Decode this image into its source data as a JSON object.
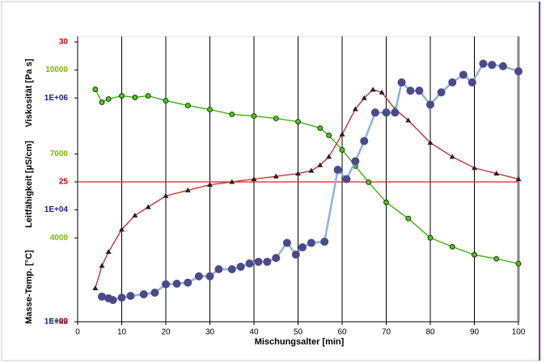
{
  "chart_data": {
    "type": "line",
    "xlabel": "Mischungsalter [min]",
    "ylabel": "Masse-Temp. [°C]",
    "y2label": "Leitfähigkeit [µS/cm]",
    "y3label": "Viskosität [Pa s]",
    "xlim": [
      0,
      100
    ],
    "xticks": [
      0,
      10,
      20,
      30,
      40,
      50,
      60,
      70,
      80,
      90,
      100
    ],
    "ylim": [
      20,
      30
    ],
    "yticks": [
      20,
      25,
      30
    ],
    "ycolor": "#cc0000",
    "y2lim": [
      1000,
      11000
    ],
    "y2ticks": [
      1000,
      4000,
      7000,
      10000
    ],
    "y2color": "#77bb00",
    "y3lim": [
      100,
      10000000
    ],
    "y3ticks": [
      {
        "value": 100,
        "label": "1E+02"
      },
      {
        "value": 10000,
        "label": "1E+04"
      },
      {
        "value": 1000000,
        "label": "1E+06"
      }
    ],
    "y3color": "#1c1c8c",
    "y3log": true,
    "reference_line": 25,
    "reference_color": "#dd2222",
    "grid": true,
    "series": [
      {
        "name": "Masse-Temp.",
        "axis": "y",
        "color": "#cc2222",
        "marker": "triangle",
        "marker_color": "#222222",
        "x": [
          4,
          5.5,
          7,
          10,
          13,
          16,
          20,
          25,
          30,
          35,
          40,
          45,
          50,
          53,
          55,
          57,
          60,
          63,
          65,
          67,
          69,
          72,
          75,
          80,
          85,
          90,
          95,
          100
        ],
        "values": [
          21.2,
          22.0,
          22.5,
          23.3,
          23.8,
          24.1,
          24.5,
          24.7,
          24.9,
          25.0,
          25.1,
          25.2,
          25.3,
          25.4,
          25.6,
          25.9,
          26.7,
          27.6,
          28.0,
          28.3,
          28.2,
          27.6,
          27.2,
          26.4,
          25.9,
          25.5,
          25.3,
          25.1
        ]
      },
      {
        "name": "Leitfähigkeit",
        "axis": "y2",
        "color": "#33aa00",
        "marker": "circle-small",
        "marker_color": "#44cc00",
        "x": [
          4,
          5.5,
          7,
          10,
          13,
          16,
          20,
          25,
          30,
          35,
          40,
          45,
          50,
          55,
          57,
          60,
          63,
          66,
          70,
          75,
          80,
          85,
          90,
          95,
          100
        ],
        "values": [
          9308,
          8846,
          8962,
          9077,
          9019,
          9077,
          8904,
          8731,
          8587,
          8413,
          8356,
          8269,
          8154,
          7923,
          7663,
          7144,
          6567,
          5990,
          5269,
          4692,
          4000,
          3683,
          3394,
          3250,
          3077
        ]
      },
      {
        "name": "Viskosität",
        "axis": "y3",
        "color": "#8ab4e0",
        "marker": "circle",
        "marker_color": "#4a4a8a",
        "x": [
          5.5,
          7,
          8,
          10,
          12,
          15,
          17.5,
          20,
          22.5,
          25,
          27.5,
          30,
          32,
          35,
          37,
          39,
          41,
          43,
          45,
          47.5,
          49.5,
          51,
          53,
          56,
          59,
          61,
          63,
          65,
          67.5,
          70,
          72,
          73.5,
          75.5,
          77.5,
          80,
          82.5,
          85,
          87.5,
          89.5,
          92,
          94,
          96.5,
          100
        ],
        "values": [
          282,
          263,
          245,
          270,
          290,
          310,
          331,
          468,
          480,
          500,
          650,
          650,
          870,
          870,
          960,
          1100,
          1180,
          1180,
          1380,
          2570,
          1590,
          2140,
          2570,
          2700,
          52000,
          35500,
          74000,
          170000,
          550000,
          550000,
          550000,
          1900000,
          1350000,
          1350000,
          760000,
          1260000,
          1900000,
          2600000,
          1900000,
          4100000,
          3900000,
          3700000,
          3000000
        ]
      }
    ]
  }
}
